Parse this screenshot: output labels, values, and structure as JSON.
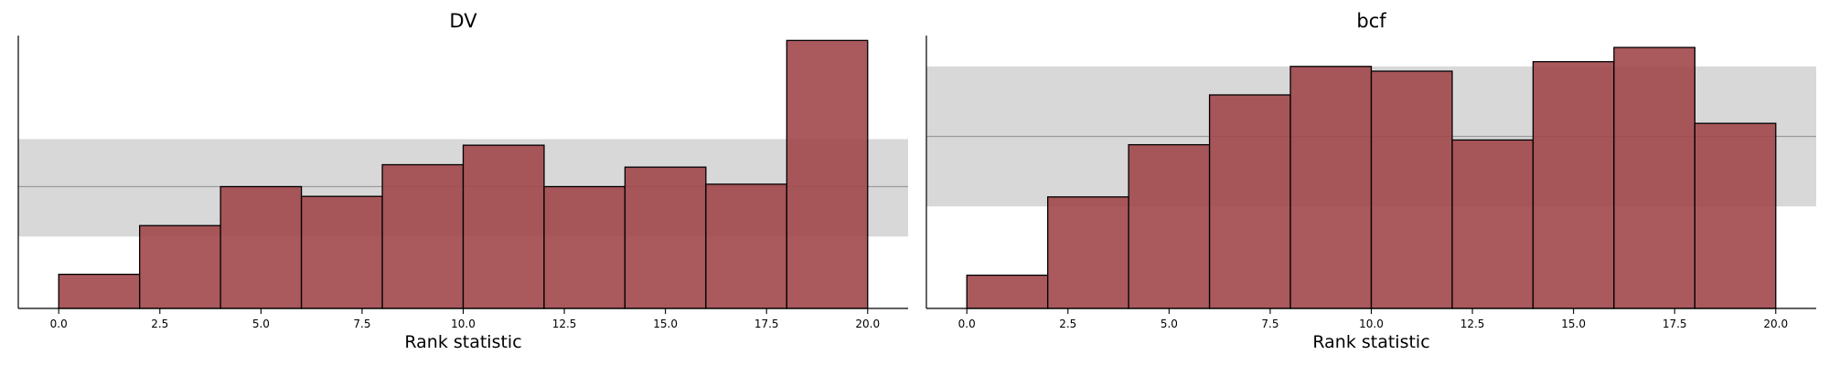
{
  "chart_data": [
    {
      "type": "bar",
      "title": "DV",
      "xlabel": "Rank statistic",
      "ylabel": "",
      "xlim": [
        -1,
        21
      ],
      "ylim": [
        0,
        112
      ],
      "xticks": [
        0.0,
        2.5,
        5.0,
        7.5,
        10.0,
        12.5,
        15.0,
        17.5,
        20.0
      ],
      "xtick_labels": [
        "0.0",
        "2.5",
        "5.0",
        "7.5",
        "10.0",
        "12.5",
        "15.0",
        "17.5",
        "20.0"
      ],
      "bin_edges": [
        0,
        2,
        4,
        6,
        8,
        10,
        12,
        14,
        16,
        18,
        20
      ],
      "values": [
        14,
        34,
        50,
        46,
        59,
        67,
        50,
        58,
        51,
        110
      ],
      "reference_band": [
        29.5,
        69.5
      ],
      "reference_line": 50,
      "grid": false,
      "y_ticks_visible": false
    },
    {
      "type": "bar",
      "title": "bcf",
      "xlabel": "Rank statistic",
      "ylabel": "",
      "xlim": [
        -1,
        21
      ],
      "ylim": [
        0,
        115
      ],
      "xticks": [
        0.0,
        2.5,
        5.0,
        7.5,
        10.0,
        12.5,
        15.0,
        17.5,
        20.0
      ],
      "xtick_labels": [
        "0.0",
        "2.5",
        "5.0",
        "7.5",
        "10.0",
        "12.5",
        "15.0",
        "17.5",
        "20.0"
      ],
      "bin_edges": [
        0,
        2,
        4,
        6,
        8,
        10,
        12,
        14,
        16,
        18,
        20
      ],
      "values": [
        14,
        47,
        69,
        90,
        102,
        100,
        71,
        104,
        110,
        78
      ],
      "reference_band": [
        43,
        102
      ],
      "reference_line": 72.5,
      "grid": false,
      "y_ticks_visible": false
    }
  ],
  "colors": {
    "bar_fill": "#a1474b",
    "bar_edge": "#000000",
    "band_fill": "#d8d8d8",
    "reference_line": "#9a9a9a",
    "axis": "#000000"
  }
}
